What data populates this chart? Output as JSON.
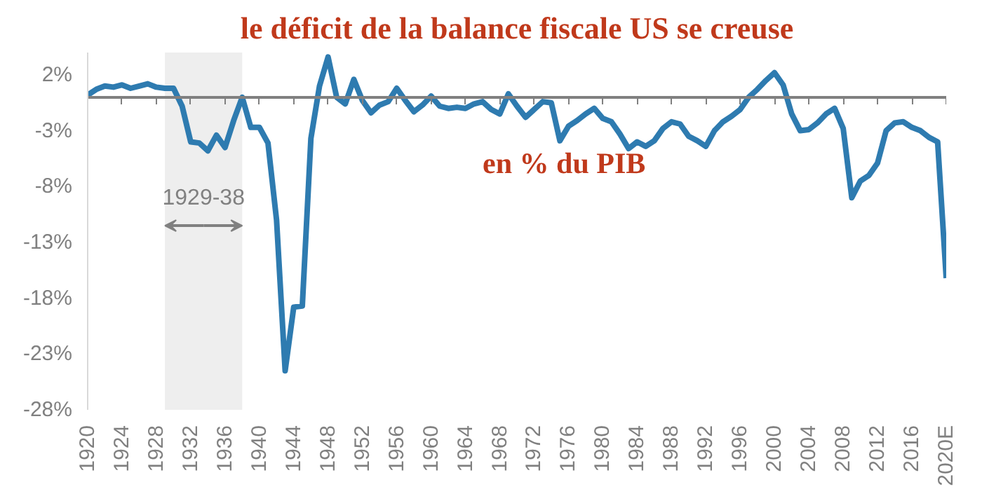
{
  "chart_data": {
    "type": "line",
    "title": "le déficit de la balance fiscale US se creuse",
    "subtitle": "en % du PIB",
    "x": [
      1920,
      1921,
      1922,
      1923,
      1924,
      1925,
      1926,
      1927,
      1928,
      1929,
      1930,
      1931,
      1932,
      1933,
      1934,
      1935,
      1936,
      1937,
      1938,
      1939,
      1940,
      1941,
      1942,
      1943,
      1944,
      1945,
      1946,
      1947,
      1948,
      1949,
      1950,
      1951,
      1952,
      1953,
      1954,
      1955,
      1956,
      1957,
      1958,
      1959,
      1960,
      1961,
      1962,
      1963,
      1964,
      1965,
      1966,
      1967,
      1968,
      1969,
      1970,
      1971,
      1972,
      1973,
      1974,
      1975,
      1976,
      1977,
      1978,
      1979,
      1980,
      1981,
      1982,
      1983,
      1984,
      1985,
      1986,
      1987,
      1988,
      1989,
      1990,
      1991,
      1992,
      1993,
      1994,
      1995,
      1996,
      1997,
      1998,
      1999,
      2000,
      2001,
      2002,
      2003,
      2004,
      2005,
      2006,
      2007,
      2008,
      2009,
      2010,
      2011,
      2012,
      2013,
      2014,
      2015,
      2016,
      2017,
      2018,
      2019,
      2020
    ],
    "series": [
      {
        "color": "#2e7bb0",
        "values": [
          0.2,
          0.7,
          1.0,
          0.9,
          1.1,
          0.8,
          1.0,
          1.2,
          0.9,
          0.8,
          0.8,
          -0.8,
          -4.0,
          -4.1,
          -4.8,
          -3.4,
          -4.5,
          -2.1,
          0,
          -2.7,
          -2.7,
          -4.1,
          -11,
          -24.5,
          -18.8,
          -18.7,
          -3.7,
          1.0,
          3.6,
          0,
          -0.6,
          1.6,
          -0.3,
          -1.4,
          -0.7,
          -0.4,
          0.8,
          -0.3,
          -1.3,
          -0.7,
          0.1,
          -0.8,
          -1.0,
          -0.9,
          -1.0,
          -0.6,
          -0.4,
          -1.1,
          -1.5,
          0.3,
          -0.8,
          -1.8,
          -1.1,
          -0.4,
          -0.5,
          -3.9,
          -2.6,
          -2.1,
          -1.5,
          -1.0,
          -1.9,
          -2.2,
          -3.3,
          -4.6,
          -4.0,
          -4.4,
          -3.9,
          -2.8,
          -2.2,
          -2.4,
          -3.5,
          -3.9,
          -4.4,
          -3.0,
          -2.2,
          -1.7,
          -1.1,
          0,
          0.7,
          1.5,
          2.2,
          1.1,
          -1.5,
          -3.0,
          -2.9,
          -2.3,
          -1.5,
          -1.0,
          -2.8,
          -9.0,
          -7.5,
          -7.0,
          -5.9,
          -3.0,
          -2.3,
          -2.2,
          -2.7,
          -3.0,
          -3.6,
          -4.0,
          -16.2
        ]
      }
    ],
    "xlim": [
      1920,
      2020
    ],
    "ylim": [
      -28,
      4
    ],
    "xticks": [
      1920,
      1924,
      1928,
      1932,
      1936,
      1940,
      1944,
      1948,
      1952,
      1956,
      1960,
      1964,
      1968,
      1972,
      1976,
      1980,
      1984,
      1988,
      1992,
      1996,
      2000,
      2004,
      2008,
      2012,
      2016,
      {
        "value": 2020,
        "label": "2020E"
      }
    ],
    "yticks": [
      {
        "value": 2,
        "label": "2%"
      },
      {
        "value": -3,
        "label": "-3%"
      },
      {
        "value": -8,
        "label": "-8%"
      },
      {
        "value": -13,
        "label": "-13%"
      },
      {
        "value": -18,
        "label": "-18%"
      },
      {
        "value": -23,
        "label": "-23%"
      },
      {
        "value": -28,
        "label": "-28%"
      }
    ],
    "bands": [
      {
        "axis": "x",
        "from": 1929,
        "to": 1938,
        "label": "1929-38",
        "color": "#eeeeee"
      }
    ],
    "grid": false,
    "line_style": "solid",
    "marker": "none"
  }
}
